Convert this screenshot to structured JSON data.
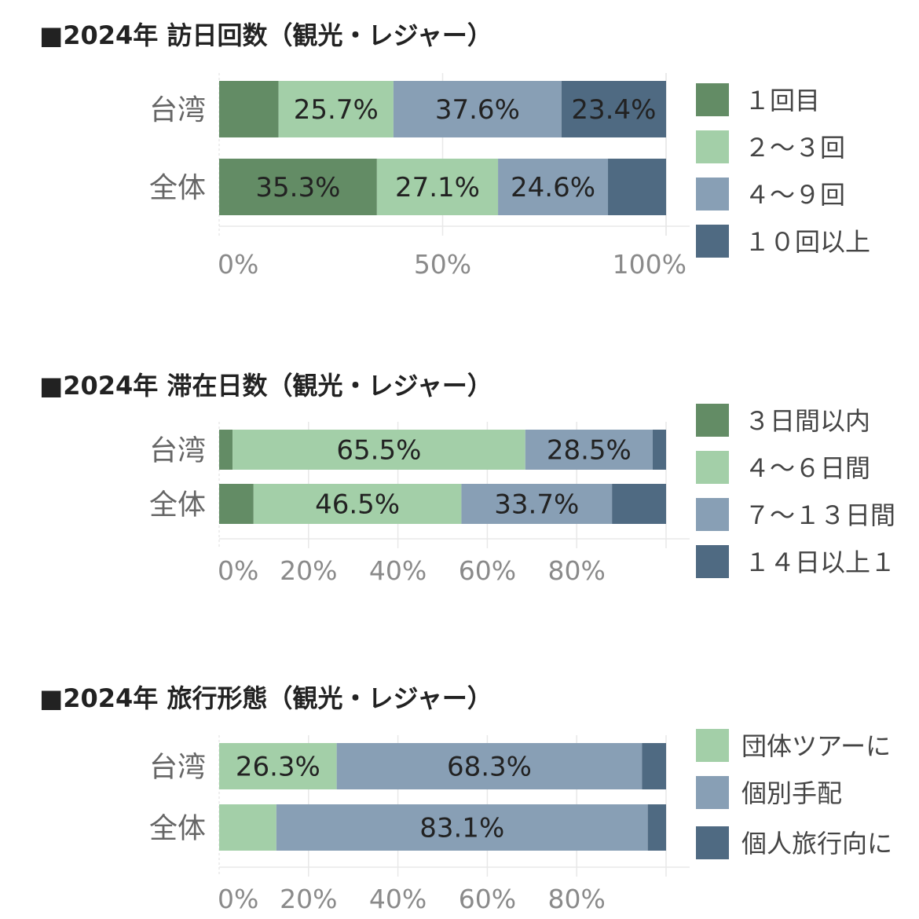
{
  "colors": {
    "c1": "#638c65",
    "c2": "#a3cfa8",
    "c3": "#889fb5",
    "c4": "#4f6a82",
    "grid": "#e8e8e8",
    "cat_text": "#666666",
    "tick_text": "#8a8a8a",
    "label_text": "#222222"
  },
  "chart_data": [
    {
      "type": "bar",
      "orientation": "horizontal",
      "stacked": true,
      "title": "■2024年 訪日回数（観光・レジャー）",
      "categories": [
        "台湾",
        "全体"
      ],
      "series": [
        {
          "name": "１回目",
          "values": [
            13.3,
            35.3
          ]
        },
        {
          "name": "２～３回",
          "values": [
            25.7,
            27.1
          ]
        },
        {
          "name": "４～９回",
          "values": [
            37.6,
            24.6
          ]
        },
        {
          "name": "１０回以上",
          "values": [
            23.4,
            13.0
          ]
        }
      ],
      "data_labels": [
        [
          "",
          "25.7%",
          "37.6%",
          "23.4%"
        ],
        [
          "35.3%",
          "27.1%",
          "24.6%",
          ""
        ]
      ],
      "x_ticks": [
        "0%",
        "50%",
        "100%"
      ],
      "x_tick_values": [
        0,
        50,
        100
      ],
      "xlim": [
        0,
        100
      ],
      "grid": true,
      "legend_position": "right"
    },
    {
      "type": "bar",
      "orientation": "horizontal",
      "stacked": true,
      "title": "■2024年 滞在日数（観光・レジャー）",
      "categories": [
        "台湾",
        "全体"
      ],
      "series": [
        {
          "name": "３日間以内",
          "values": [
            3.0,
            7.7
          ]
        },
        {
          "name": "４～６日間",
          "values": [
            65.5,
            46.5
          ]
        },
        {
          "name": "７～１３日間",
          "values": [
            28.5,
            33.7
          ]
        },
        {
          "name": "１４日以上１",
          "values": [
            3.0,
            12.1
          ]
        }
      ],
      "data_labels": [
        [
          "",
          "65.5%",
          "28.5%",
          ""
        ],
        [
          "",
          "46.5%",
          "33.7%",
          ""
        ]
      ],
      "x_ticks": [
        "0%",
        "20%",
        "40%",
        "60%",
        "80%"
      ],
      "x_tick_values": [
        0,
        20,
        40,
        60,
        80
      ],
      "xlim": [
        0,
        100
      ],
      "grid": true,
      "legend_position": "right"
    },
    {
      "type": "bar",
      "orientation": "horizontal",
      "stacked": true,
      "title": "■2024年 旅行形態（観光・レジャー）",
      "categories": [
        "台湾",
        "全体"
      ],
      "series": [
        {
          "name": "団体ツアーに",
          "values": [
            26.3,
            12.8
          ]
        },
        {
          "name": "個別手配",
          "values": [
            68.3,
            83.1
          ]
        },
        {
          "name": "個人旅行向に",
          "values": [
            5.4,
            4.1
          ]
        }
      ],
      "data_labels": [
        [
          "26.3%",
          "68.3%",
          ""
        ],
        [
          "",
          "83.1%",
          ""
        ]
      ],
      "x_ticks": [
        "0%",
        "20%",
        "40%",
        "60%",
        "80%"
      ],
      "x_tick_values": [
        0,
        20,
        40,
        60,
        80
      ],
      "xlim": [
        0,
        100
      ],
      "grid": true,
      "legend_position": "right"
    }
  ]
}
